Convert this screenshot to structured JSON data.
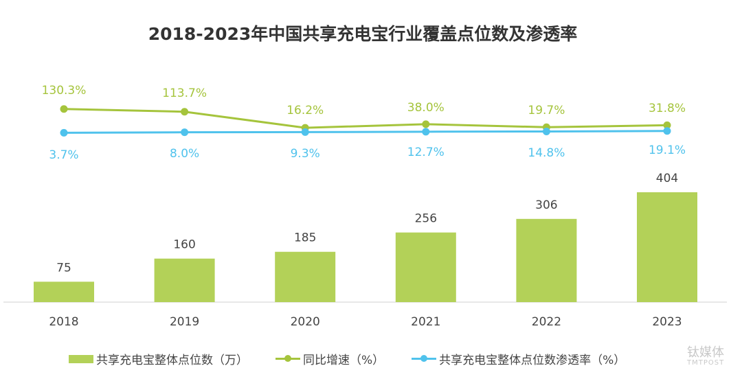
{
  "chart_data": {
    "type": "bar+line",
    "title": "2018-2023年中国共享充电宝行业覆盖点位数及渗透率",
    "categories": [
      "2018",
      "2019",
      "2020",
      "2021",
      "2022",
      "2023"
    ],
    "series": [
      {
        "name": "共享充电宝整体点位数（万）",
        "type": "bar",
        "values": [
          75,
          160,
          185,
          256,
          306,
          404
        ],
        "labels": [
          "75",
          "160",
          "185",
          "256",
          "306",
          "404"
        ],
        "color": "#b3d158"
      },
      {
        "name": "同比增速（%）",
        "type": "line",
        "values": [
          130.3,
          113.7,
          16.2,
          38.0,
          19.7,
          31.8
        ],
        "labels": [
          "130.3%",
          "113.7%",
          "16.2%",
          "38.0%",
          "19.7%",
          "31.8%"
        ],
        "color": "#a5c43c"
      },
      {
        "name": "共享充电宝整体点位数渗透率（%）",
        "type": "line",
        "values": [
          3.7,
          8.0,
          9.3,
          12.7,
          14.8,
          19.1
        ],
        "labels": [
          "3.7%",
          "8.0%",
          "9.3%",
          "12.7%",
          "14.8%",
          "19.1%"
        ],
        "color": "#4fc2ec"
      }
    ],
    "legend": "bottom",
    "grid": false
  },
  "watermark": {
    "name": "钛媒体",
    "sub": "TMTPOST"
  }
}
